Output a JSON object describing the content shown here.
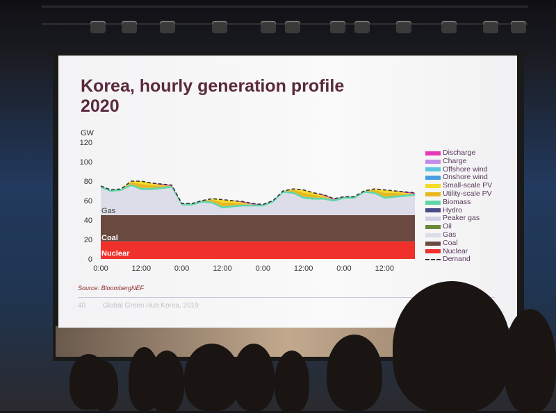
{
  "slide": {
    "title_line1": "Korea, hourly generation profile",
    "title_line2": "2020",
    "unit": "GW",
    "source": "Source: BloombergNEF",
    "page_number": "40",
    "footer": "Global Green Hub Korea, 2019"
  },
  "chart_data": {
    "type": "area",
    "stacked": true,
    "ylabel": "GW",
    "ylim": [
      0,
      120
    ],
    "yticks": [
      0,
      20,
      40,
      60,
      80,
      100,
      120
    ],
    "xlim_hours": [
      0,
      93
    ],
    "xtick_labels": [
      "0:00",
      "12:00",
      "0:00",
      "12:00",
      "0:00",
      "12:00",
      "0:00",
      "12:00"
    ],
    "xtick_hours": [
      0,
      12,
      24,
      36,
      48,
      60,
      72,
      84
    ],
    "grid": false,
    "legend_placement": "right",
    "area_labels": [
      "Gas",
      "Coal",
      "Nuclear"
    ],
    "x_hours": [
      0,
      3,
      6,
      9,
      12,
      15,
      18,
      21,
      24,
      27,
      30,
      33,
      36,
      39,
      42,
      45,
      48,
      51,
      54,
      57,
      60,
      63,
      66,
      69,
      72,
      75,
      78,
      81,
      84,
      87,
      90,
      93
    ],
    "series": [
      {
        "name": "Nuclear",
        "color": "#f0302a",
        "values": [
          18,
          18,
          18,
          18,
          18,
          18,
          18,
          18,
          18,
          18,
          18,
          18,
          18,
          18,
          18,
          18,
          18,
          18,
          18,
          18,
          18,
          18,
          18,
          18,
          18,
          18,
          18,
          18,
          18,
          18,
          18,
          18
        ]
      },
      {
        "name": "Coal",
        "color": "#6a4a40",
        "values": [
          27,
          27,
          27,
          27,
          27,
          27,
          27,
          27,
          27,
          27,
          27,
          27,
          27,
          27,
          27,
          27,
          27,
          27,
          27,
          27,
          27,
          27,
          27,
          27,
          27,
          27,
          27,
          27,
          27,
          27,
          27,
          27
        ]
      },
      {
        "name": "Gas",
        "color": "#dcdde8",
        "values": [
          28,
          24,
          25,
          30,
          26,
          26,
          27,
          28,
          10,
          10,
          13,
          12,
          7,
          8,
          9,
          9,
          9,
          13,
          23,
          22,
          17,
          16,
          16,
          14,
          17,
          17,
          23,
          22,
          17,
          18,
          19,
          20
        ]
      },
      {
        "name": "Biomass",
        "color": "#5fd6a8",
        "values": [
          2,
          2,
          2,
          2,
          2,
          2,
          2,
          2,
          2,
          2,
          2,
          2,
          2,
          2,
          2,
          2,
          2,
          2,
          2,
          2,
          2,
          2,
          2,
          2,
          2,
          2,
          2,
          2,
          2,
          2,
          2,
          2
        ]
      },
      {
        "name": "Utility-scale PV",
        "color": "#e8b820",
        "values": [
          0,
          0,
          0,
          2,
          4,
          3,
          1,
          0,
          0,
          0,
          0,
          2,
          4,
          3,
          1,
          0,
          0,
          0,
          0,
          2,
          4,
          3,
          1,
          0,
          0,
          0,
          0,
          2,
          4,
          3,
          1,
          0
        ]
      },
      {
        "name": "Small-scale PV",
        "color": "#f4dc2a",
        "values": [
          0,
          0,
          0,
          1,
          3,
          2,
          1,
          0,
          0,
          0,
          0,
          1,
          3,
          2,
          1,
          0,
          0,
          0,
          0,
          1,
          3,
          2,
          1,
          0,
          0,
          0,
          0,
          1,
          3,
          2,
          1,
          0
        ]
      },
      {
        "name": "Discharge",
        "color": "#e838b8",
        "values": [
          0,
          0,
          0,
          0,
          0,
          0,
          1,
          1,
          0,
          0,
          0,
          0,
          0,
          0,
          1,
          1,
          0,
          0,
          0,
          0,
          0,
          0,
          1,
          1,
          0,
          0,
          0,
          0,
          0,
          0,
          1,
          1
        ]
      }
    ],
    "demand": {
      "name": "Demand",
      "values": [
        75,
        71,
        72,
        80,
        80,
        78,
        77,
        76,
        57,
        57,
        60,
        62,
        61,
        60,
        59,
        57,
        56,
        60,
        70,
        72,
        71,
        68,
        66,
        62,
        64,
        64,
        70,
        72,
        71,
        70,
        69,
        68
      ]
    },
    "legend": [
      {
        "name": "Discharge",
        "color": "#e838b8"
      },
      {
        "name": "Charge",
        "color": "#c48ee8"
      },
      {
        "name": "Offshore wind",
        "color": "#5cc8e0"
      },
      {
        "name": "Onshore wind",
        "color": "#4a9ee0"
      },
      {
        "name": "Small-scale PV",
        "color": "#f4dc2a"
      },
      {
        "name": "Utility-scale PV",
        "color": "#e8b820"
      },
      {
        "name": "Biomass",
        "color": "#5fd6a8"
      },
      {
        "name": "Hydro",
        "color": "#4a4a8a"
      },
      {
        "name": "Peaker gas",
        "color": "#cfd0e4"
      },
      {
        "name": "Oil",
        "color": "#6a8a3a"
      },
      {
        "name": "Gas",
        "color": "#dcdde8"
      },
      {
        "name": "Coal",
        "color": "#6a4a40"
      },
      {
        "name": "Nuclear",
        "color": "#f0302a"
      },
      {
        "name": "Demand",
        "color": "#333333",
        "dashed": true
      }
    ]
  }
}
